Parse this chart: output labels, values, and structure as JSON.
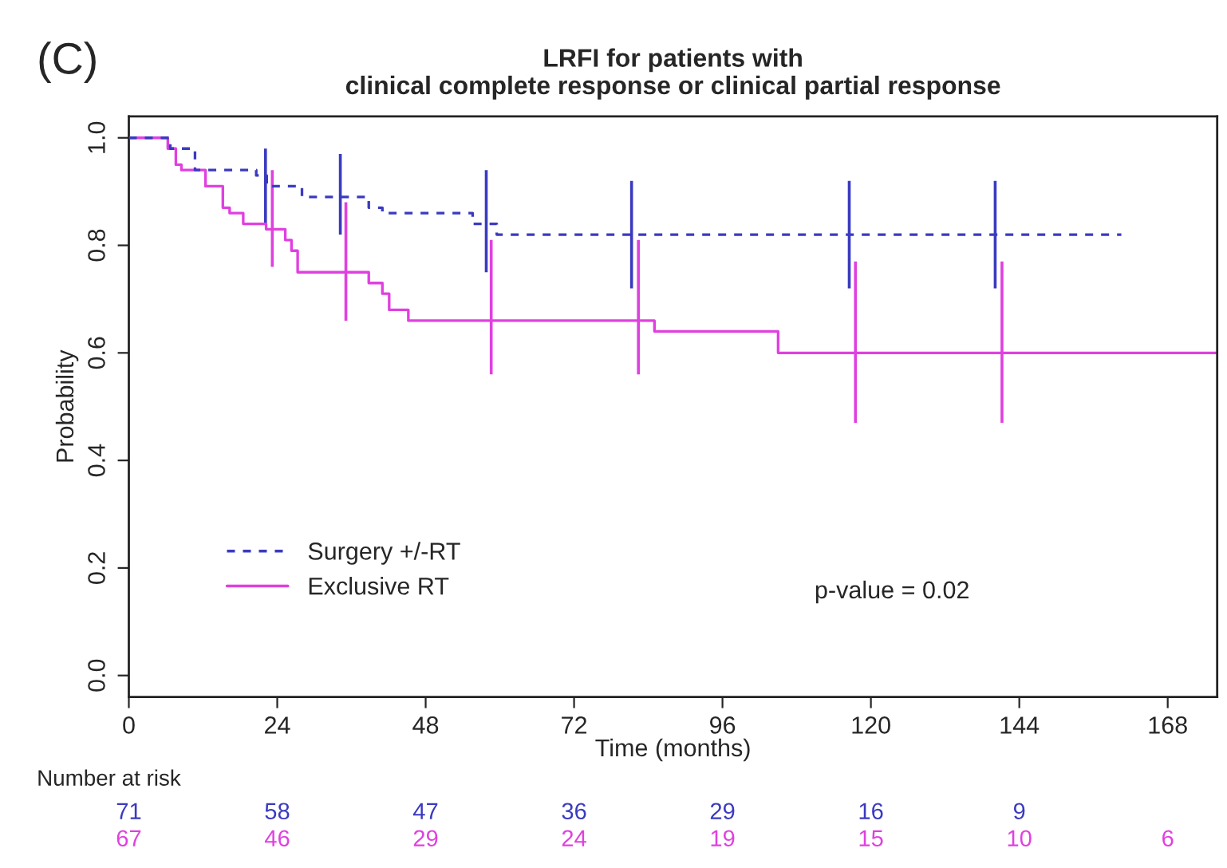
{
  "chart_data": {
    "type": "step",
    "title": "LRFI for patients with\nclinical complete response or clinical partial response",
    "xlabel": "Time (months)",
    "ylabel": "Probability",
    "xlim": [
      0,
      176
    ],
    "ylim": [
      -0.04,
      1.04
    ],
    "xticks": [
      0,
      24,
      48,
      72,
      96,
      120,
      144,
      168
    ],
    "yticks": [
      {
        "value": 0,
        "label": "0.0"
      },
      {
        "value": 0.2,
        "label": "0.2"
      },
      {
        "value": 0.4,
        "label": "0.4"
      },
      {
        "value": 0.6,
        "label": "0.6"
      },
      {
        "value": 0.8,
        "label": "0.8"
      },
      {
        "value": 1,
        "label": "1.0"
      }
    ],
    "grid": false,
    "legend": "bottom left",
    "marker": "none",
    "series": [
      {
        "name": "Surgery +/-RT",
        "color": "#3a3ac0",
        "line_style": "dashed",
        "x": [
          0,
          6.7,
          10.7,
          20.6,
          22.1,
          22.3,
          28,
          34.2,
          38.8,
          41,
          55.6,
          57.8,
          59.5,
          81.3,
          116.5,
          140.1,
          160.5
        ],
        "values": [
          1.0,
          0.98,
          0.94,
          0.93,
          0.93,
          0.91,
          0.89,
          0.89,
          0.87,
          0.86,
          0.84,
          0.84,
          0.82,
          0.82,
          0.82,
          0.82,
          0.82
        ],
        "errors": [
          null,
          null,
          null,
          null,
          [
            0.84,
            0.98
          ],
          null,
          null,
          [
            0.82,
            0.97
          ],
          null,
          null,
          null,
          [
            0.75,
            0.94
          ],
          null,
          [
            0.72,
            0.92
          ],
          [
            0.72,
            0.92
          ],
          [
            0.72,
            0.92
          ],
          null
        ]
      },
      {
        "name": "Exclusive RT",
        "color": "#e040e0",
        "line_style": "solid",
        "x": [
          0,
          6.3,
          7.6,
          8.5,
          12.4,
          15.2,
          16.3,
          18.5,
          22.2,
          23.2,
          25.3,
          26.3,
          27.3,
          35.1,
          38.8,
          41,
          42.1,
          45.2,
          58.6,
          82.4,
          85,
          105,
          117.5,
          141.2,
          176
        ],
        "values": [
          1.0,
          0.98,
          0.95,
          0.94,
          0.91,
          0.87,
          0.86,
          0.84,
          0.83,
          0.83,
          0.81,
          0.79,
          0.75,
          0.75,
          0.73,
          0.71,
          0.68,
          0.66,
          0.66,
          0.66,
          0.64,
          0.6,
          0.6,
          0.6,
          0.6
        ],
        "errors": [
          null,
          null,
          null,
          null,
          null,
          null,
          null,
          null,
          null,
          [
            0.76,
            0.94
          ],
          null,
          null,
          null,
          [
            0.66,
            0.88
          ],
          null,
          null,
          null,
          null,
          [
            0.56,
            0.81
          ],
          [
            0.56,
            0.81
          ],
          null,
          null,
          [
            0.47,
            0.77
          ],
          [
            0.47,
            0.77
          ],
          null
        ]
      }
    ],
    "annotations": [
      "(C)",
      "p-value = 0.02",
      "Number at risk",
      "71",
      "58",
      "47",
      "36",
      "29",
      "16",
      "9",
      "67",
      "46",
      "29",
      "24",
      "19",
      "15",
      "10",
      "6"
    ]
  }
}
